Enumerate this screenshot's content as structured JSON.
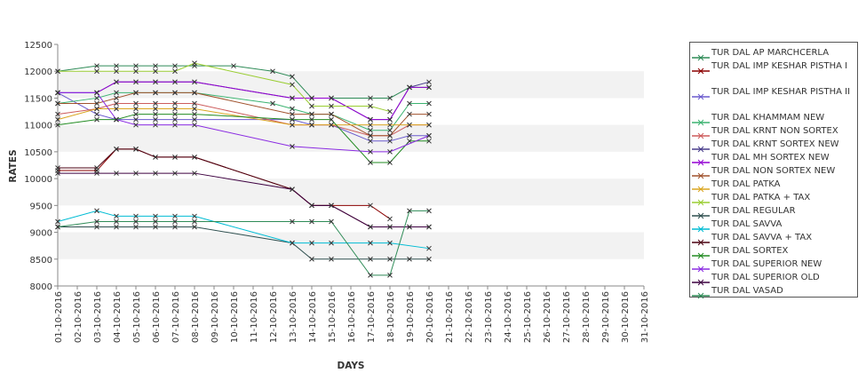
{
  "chart_data": {
    "type": "line",
    "title": "",
    "xlabel": "DAYS",
    "ylabel": "RATES",
    "ylim": [
      8000,
      12500
    ],
    "y_ticks": [
      8000,
      8500,
      9000,
      9500,
      10000,
      10500,
      11000,
      11500,
      12000,
      12500
    ],
    "x_ticks": [
      "01-10-2016",
      "02-10-2016",
      "03-10-2016",
      "04-10-2016",
      "05-10-2016",
      "06-10-2016",
      "07-10-2016",
      "08-10-2016",
      "09-10-2016",
      "10-10-2016",
      "11-10-2016",
      "12-10-2016",
      "13-10-2016",
      "14-10-2016",
      "15-10-2016",
      "16-10-2016",
      "17-10-2016",
      "18-10-2016",
      "19-10-2016",
      "20-10-2016",
      "21-10-2016",
      "22-10-2016",
      "23-10-2016",
      "24-10-2016",
      "25-10-2016",
      "26-10-2016",
      "27-10-2016",
      "28-10-2016",
      "29-10-2016",
      "30-10-2016",
      "31-10-2016"
    ],
    "grid": "horizontal bands",
    "legend_position": "right",
    "series": [
      {
        "name": "TUR DAL AP MARCHCERLA",
        "color": "#2e8b57",
        "points": [
          [
            "01-10-2016",
            12000
          ],
          [
            "03-10-2016",
            12100
          ],
          [
            "04-10-2016",
            12100
          ],
          [
            "05-10-2016",
            12100
          ],
          [
            "06-10-2016",
            12100
          ],
          [
            "07-10-2016",
            12100
          ],
          [
            "08-10-2016",
            12100
          ],
          [
            "10-10-2016",
            12100
          ],
          [
            "12-10-2016",
            12000
          ],
          [
            "13-10-2016",
            11900
          ],
          [
            "14-10-2016",
            11500
          ],
          [
            "15-10-2016",
            11500
          ],
          [
            "17-10-2016",
            11500
          ],
          [
            "18-10-2016",
            11500
          ],
          [
            "19-10-2016",
            11700
          ],
          [
            "20-10-2016",
            11700
          ]
        ]
      },
      {
        "name": "TUR DAL IMP KESHAR PISTHA I",
        "color": "#8b0000",
        "points": [
          [
            "01-10-2016",
            10150
          ],
          [
            "03-10-2016",
            10150
          ],
          [
            "04-10-2016",
            10550
          ],
          [
            "05-10-2016",
            10550
          ],
          [
            "06-10-2016",
            10400
          ],
          [
            "07-10-2016",
            10400
          ],
          [
            "08-10-2016",
            10400
          ],
          [
            "13-10-2016",
            9800
          ],
          [
            "14-10-2016",
            9500
          ],
          [
            "15-10-2016",
            9500
          ],
          [
            "17-10-2016",
            9500
          ],
          [
            "18-10-2016",
            9250
          ]
        ]
      },
      {
        "name": "TUR DAL IMP KESHAR PISTHA II",
        "color": "#6a5acd",
        "points": [
          [
            "01-10-2016",
            11600
          ],
          [
            "03-10-2016",
            11200
          ],
          [
            "04-10-2016",
            11100
          ],
          [
            "05-10-2016",
            11100
          ],
          [
            "06-10-2016",
            11100
          ],
          [
            "07-10-2016",
            11100
          ],
          [
            "08-10-2016",
            11100
          ],
          [
            "13-10-2016",
            11100
          ],
          [
            "14-10-2016",
            11000
          ],
          [
            "15-10-2016",
            11000
          ],
          [
            "17-10-2016",
            10700
          ],
          [
            "18-10-2016",
            10700
          ],
          [
            "19-10-2016",
            10800
          ],
          [
            "20-10-2016",
            10800
          ]
        ]
      },
      {
        "name": "TUR DAL KHAMMAM NEW",
        "color": "#3cb371",
        "points": [
          [
            "01-10-2016",
            11400
          ],
          [
            "03-10-2016",
            11500
          ],
          [
            "04-10-2016",
            11600
          ],
          [
            "05-10-2016",
            11600
          ],
          [
            "06-10-2016",
            11600
          ],
          [
            "07-10-2016",
            11600
          ],
          [
            "08-10-2016",
            11600
          ],
          [
            "12-10-2016",
            11400
          ],
          [
            "13-10-2016",
            11300
          ],
          [
            "14-10-2016",
            11200
          ],
          [
            "15-10-2016",
            11200
          ],
          [
            "17-10-2016",
            10900
          ],
          [
            "18-10-2016",
            10900
          ],
          [
            "19-10-2016",
            11400
          ],
          [
            "20-10-2016",
            11400
          ]
        ]
      },
      {
        "name": "TUR DAL KRNT NON SORTEX",
        "color": "#cd5c5c",
        "points": [
          [
            "01-10-2016",
            11200
          ],
          [
            "03-10-2016",
            11300
          ],
          [
            "04-10-2016",
            11400
          ],
          [
            "05-10-2016",
            11400
          ],
          [
            "06-10-2016",
            11400
          ],
          [
            "07-10-2016",
            11400
          ],
          [
            "08-10-2016",
            11400
          ],
          [
            "13-10-2016",
            11000
          ],
          [
            "14-10-2016",
            11000
          ],
          [
            "15-10-2016",
            11000
          ],
          [
            "17-10-2016",
            10800
          ],
          [
            "18-10-2016",
            10800
          ],
          [
            "19-10-2016",
            11000
          ],
          [
            "20-10-2016",
            11000
          ]
        ]
      },
      {
        "name": "TUR DAL KRNT SORTEX NEW",
        "color": "#483d8b",
        "points": [
          [
            "01-10-2016",
            11600
          ],
          [
            "03-10-2016",
            11600
          ],
          [
            "04-10-2016",
            11800
          ],
          [
            "05-10-2016",
            11800
          ],
          [
            "06-10-2016",
            11800
          ],
          [
            "07-10-2016",
            11800
          ],
          [
            "08-10-2016",
            11800
          ],
          [
            "13-10-2016",
            11500
          ],
          [
            "14-10-2016",
            11500
          ],
          [
            "15-10-2016",
            11500
          ],
          [
            "17-10-2016",
            11100
          ],
          [
            "18-10-2016",
            11100
          ],
          [
            "19-10-2016",
            11700
          ],
          [
            "20-10-2016",
            11800
          ]
        ]
      },
      {
        "name": "TUR DAL MH SORTEX NEW",
        "color": "#9400d3",
        "points": [
          [
            "01-10-2016",
            11600
          ],
          [
            "03-10-2016",
            11600
          ],
          [
            "04-10-2016",
            11800
          ],
          [
            "05-10-2016",
            11800
          ],
          [
            "06-10-2016",
            11800
          ],
          [
            "07-10-2016",
            11800
          ],
          [
            "08-10-2016",
            11800
          ],
          [
            "13-10-2016",
            11500
          ],
          [
            "14-10-2016",
            11500
          ],
          [
            "15-10-2016",
            11500
          ],
          [
            "17-10-2016",
            11100
          ],
          [
            "18-10-2016",
            11100
          ],
          [
            "19-10-2016",
            11700
          ],
          [
            "20-10-2016",
            11700
          ]
        ]
      },
      {
        "name": "TUR DAL NON SORTEX NEW",
        "color": "#a0522d",
        "points": [
          [
            "01-10-2016",
            11400
          ],
          [
            "03-10-2016",
            11400
          ],
          [
            "04-10-2016",
            11500
          ],
          [
            "05-10-2016",
            11600
          ],
          [
            "06-10-2016",
            11600
          ],
          [
            "07-10-2016",
            11600
          ],
          [
            "08-10-2016",
            11600
          ],
          [
            "13-10-2016",
            11200
          ],
          [
            "14-10-2016",
            11200
          ],
          [
            "15-10-2016",
            11200
          ],
          [
            "17-10-2016",
            10800
          ],
          [
            "18-10-2016",
            10800
          ],
          [
            "19-10-2016",
            11200
          ],
          [
            "20-10-2016",
            11200
          ]
        ]
      },
      {
        "name": "TUR DAL PATKA",
        "color": "#daa520",
        "points": [
          [
            "01-10-2016",
            11100
          ],
          [
            "03-10-2016",
            11300
          ],
          [
            "04-10-2016",
            11300
          ],
          [
            "05-10-2016",
            11300
          ],
          [
            "06-10-2016",
            11300
          ],
          [
            "07-10-2016",
            11300
          ],
          [
            "08-10-2016",
            11300
          ],
          [
            "13-10-2016",
            11000
          ],
          [
            "14-10-2016",
            11000
          ],
          [
            "15-10-2016",
            11000
          ],
          [
            "17-10-2016",
            11000
          ],
          [
            "18-10-2016",
            11000
          ],
          [
            "19-10-2016",
            11000
          ],
          [
            "20-10-2016",
            11000
          ]
        ]
      },
      {
        "name": "TUR DAL PATKA + TAX",
        "color": "#9acd32",
        "points": [
          [
            "01-10-2016",
            12000
          ],
          [
            "03-10-2016",
            12000
          ],
          [
            "04-10-2016",
            12000
          ],
          [
            "05-10-2016",
            12000
          ],
          [
            "06-10-2016",
            12000
          ],
          [
            "07-10-2016",
            12000
          ],
          [
            "08-10-2016",
            12150
          ],
          [
            "13-10-2016",
            11750
          ],
          [
            "14-10-2016",
            11350
          ],
          [
            "15-10-2016",
            11350
          ],
          [
            "17-10-2016",
            11350
          ],
          [
            "18-10-2016",
            11250
          ]
        ]
      },
      {
        "name": "TUR DAL REGULAR",
        "color": "#2f4f4f",
        "points": [
          [
            "01-10-2016",
            9100
          ],
          [
            "03-10-2016",
            9100
          ],
          [
            "04-10-2016",
            9100
          ],
          [
            "05-10-2016",
            9100
          ],
          [
            "06-10-2016",
            9100
          ],
          [
            "07-10-2016",
            9100
          ],
          [
            "08-10-2016",
            9100
          ],
          [
            "13-10-2016",
            8800
          ],
          [
            "14-10-2016",
            8500
          ],
          [
            "15-10-2016",
            8500
          ],
          [
            "17-10-2016",
            8500
          ],
          [
            "18-10-2016",
            8500
          ],
          [
            "19-10-2016",
            8500
          ],
          [
            "20-10-2016",
            8500
          ]
        ]
      },
      {
        "name": "TUR DAL SAVVA",
        "color": "#00bcd4",
        "points": [
          [
            "01-10-2016",
            9200
          ],
          [
            "03-10-2016",
            9400
          ],
          [
            "04-10-2016",
            9300
          ],
          [
            "05-10-2016",
            9300
          ],
          [
            "06-10-2016",
            9300
          ],
          [
            "07-10-2016",
            9300
          ],
          [
            "08-10-2016",
            9300
          ],
          [
            "13-10-2016",
            8800
          ],
          [
            "14-10-2016",
            8800
          ],
          [
            "15-10-2016",
            8800
          ],
          [
            "17-10-2016",
            8800
          ],
          [
            "18-10-2016",
            8800
          ],
          [
            "20-10-2016",
            8700
          ]
        ]
      },
      {
        "name": "TUR DAL SAVVA + TAX",
        "color": "#4b0010",
        "points": [
          [
            "01-10-2016",
            10200
          ],
          [
            "03-10-2016",
            10200
          ],
          [
            "04-10-2016",
            10550
          ],
          [
            "05-10-2016",
            10550
          ],
          [
            "06-10-2016",
            10400
          ],
          [
            "07-10-2016",
            10400
          ],
          [
            "08-10-2016",
            10400
          ],
          [
            "13-10-2016",
            9800
          ],
          [
            "14-10-2016",
            9500
          ],
          [
            "15-10-2016",
            9500
          ],
          [
            "17-10-2016",
            9100
          ],
          [
            "18-10-2016",
            9100
          ],
          [
            "19-10-2016",
            9100
          ],
          [
            "20-10-2016",
            9100
          ]
        ]
      },
      {
        "name": "TUR DAL SORTEX",
        "color": "#228b22",
        "points": [
          [
            "01-10-2016",
            11000
          ],
          [
            "03-10-2016",
            11100
          ],
          [
            "04-10-2016",
            11100
          ],
          [
            "05-10-2016",
            11200
          ],
          [
            "06-10-2016",
            11200
          ],
          [
            "07-10-2016",
            11200
          ],
          [
            "08-10-2016",
            11200
          ],
          [
            "13-10-2016",
            11100
          ],
          [
            "14-10-2016",
            11100
          ],
          [
            "15-10-2016",
            11100
          ],
          [
            "17-10-2016",
            10300
          ],
          [
            "18-10-2016",
            10300
          ],
          [
            "19-10-2016",
            10700
          ],
          [
            "20-10-2016",
            10700
          ]
        ]
      },
      {
        "name": "TUR DAL SUPERIOR NEW",
        "color": "#8a2be2",
        "points": [
          [
            "01-10-2016",
            11600
          ],
          [
            "03-10-2016",
            11600
          ],
          [
            "04-10-2016",
            11100
          ],
          [
            "05-10-2016",
            11000
          ],
          [
            "06-10-2016",
            11000
          ],
          [
            "07-10-2016",
            11000
          ],
          [
            "08-10-2016",
            11000
          ],
          [
            "13-10-2016",
            10600
          ],
          [
            "17-10-2016",
            10500
          ],
          [
            "18-10-2016",
            10500
          ],
          [
            "20-10-2016",
            10800
          ]
        ]
      },
      {
        "name": "TUR DAL SUPERIOR OLD",
        "color": "#3d0040",
        "points": [
          [
            "01-10-2016",
            10100
          ],
          [
            "03-10-2016",
            10100
          ],
          [
            "04-10-2016",
            10100
          ],
          [
            "05-10-2016",
            10100
          ],
          [
            "06-10-2016",
            10100
          ],
          [
            "07-10-2016",
            10100
          ],
          [
            "08-10-2016",
            10100
          ],
          [
            "13-10-2016",
            9800
          ],
          [
            "14-10-2016",
            9500
          ],
          [
            "15-10-2016",
            9500
          ],
          [
            "17-10-2016",
            9100
          ],
          [
            "18-10-2016",
            9100
          ],
          [
            "19-10-2016",
            9100
          ],
          [
            "20-10-2016",
            9100
          ]
        ]
      },
      {
        "name": "TUR DAL VASAD",
        "color": "#2e8b57",
        "points": [
          [
            "01-10-2016",
            9100
          ],
          [
            "03-10-2016",
            9200
          ],
          [
            "04-10-2016",
            9200
          ],
          [
            "05-10-2016",
            9200
          ],
          [
            "06-10-2016",
            9200
          ],
          [
            "07-10-2016",
            9200
          ],
          [
            "08-10-2016",
            9200
          ],
          [
            "13-10-2016",
            9200
          ],
          [
            "14-10-2016",
            9200
          ],
          [
            "15-10-2016",
            9200
          ],
          [
            "17-10-2016",
            8200
          ],
          [
            "18-10-2016",
            8200
          ],
          [
            "19-10-2016",
            9400
          ],
          [
            "20-10-2016",
            9400
          ]
        ]
      }
    ]
  }
}
